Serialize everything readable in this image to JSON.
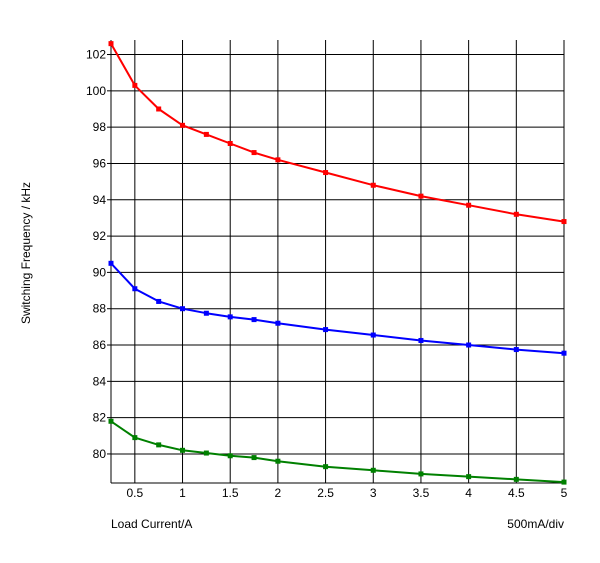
{
  "chart_data": {
    "type": "line",
    "title": "",
    "xlabel": "Load Current/A",
    "x_div_note": "500mA/div",
    "ylabel": "Switching Frequency / kHz",
    "xlim": [
      0.25,
      5
    ],
    "ylim": [
      78.4,
      102.8
    ],
    "x_ticks": [
      0.5,
      1,
      1.5,
      2,
      2.5,
      3,
      3.5,
      4,
      4.5,
      5
    ],
    "x_tick_labels": [
      "0.5",
      "1",
      "1.5",
      "2",
      "2.5",
      "3",
      "3.5",
      "4",
      "4.5",
      "5"
    ],
    "y_ticks": [
      80,
      82,
      84,
      86,
      88,
      90,
      92,
      94,
      96,
      98,
      100,
      102
    ],
    "y_tick_labels": [
      "80",
      "82",
      "84",
      "86",
      "88",
      "90",
      "92",
      "94",
      "96",
      "98",
      "100",
      "102"
    ],
    "grid": true,
    "legend": "none",
    "series": [
      {
        "color": "#ff0000",
        "points": [
          [
            0.25,
            102.6
          ],
          [
            0.5,
            100.3
          ],
          [
            0.75,
            99.0
          ],
          [
            1.0,
            98.1
          ],
          [
            1.25,
            97.6
          ],
          [
            1.5,
            97.1
          ],
          [
            1.75,
            96.6
          ],
          [
            2.0,
            96.2
          ],
          [
            2.5,
            95.5
          ],
          [
            3.0,
            94.8
          ],
          [
            3.5,
            94.2
          ],
          [
            4.0,
            93.7
          ],
          [
            4.5,
            93.2
          ],
          [
            5.0,
            92.8
          ]
        ]
      },
      {
        "color": "#0000ff",
        "points": [
          [
            0.25,
            90.5
          ],
          [
            0.5,
            89.1
          ],
          [
            0.75,
            88.4
          ],
          [
            1.0,
            88.0
          ],
          [
            1.25,
            87.75
          ],
          [
            1.5,
            87.55
          ],
          [
            1.75,
            87.4
          ],
          [
            2.0,
            87.2
          ],
          [
            2.5,
            86.85
          ],
          [
            3.0,
            86.55
          ],
          [
            3.5,
            86.25
          ],
          [
            4.0,
            86.0
          ],
          [
            4.5,
            85.75
          ],
          [
            5.0,
            85.55
          ]
        ]
      },
      {
        "color": "#008000",
        "points": [
          [
            0.25,
            81.8
          ],
          [
            0.5,
            80.9
          ],
          [
            0.75,
            80.5
          ],
          [
            1.0,
            80.2
          ],
          [
            1.25,
            80.05
          ],
          [
            1.5,
            79.9
          ],
          [
            1.75,
            79.8
          ],
          [
            2.0,
            79.6
          ],
          [
            2.5,
            79.3
          ],
          [
            3.0,
            79.1
          ],
          [
            3.5,
            78.9
          ],
          [
            4.0,
            78.75
          ],
          [
            4.5,
            78.6
          ],
          [
            5.0,
            78.45
          ]
        ]
      }
    ]
  }
}
